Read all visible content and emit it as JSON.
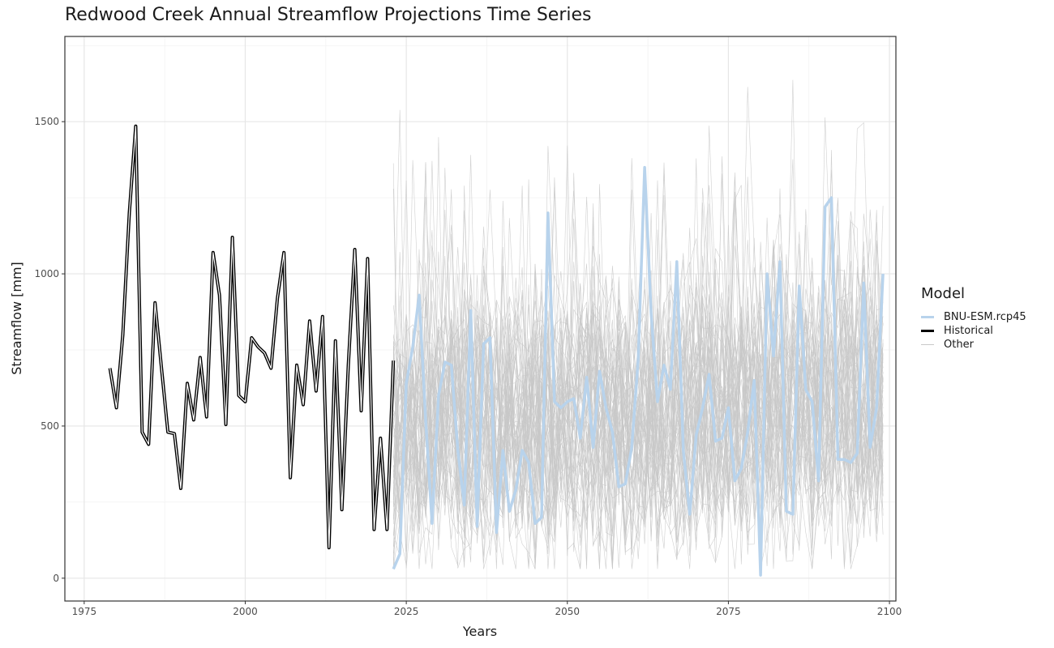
{
  "chart_data": {
    "type": "line",
    "title": "Redwood Creek Annual Streamflow Projections Time Series",
    "xlabel": "Years",
    "ylabel": "Streamflow [mm]",
    "xlim": [
      1972,
      2101
    ],
    "ylim": [
      -75,
      1780
    ],
    "xticks": [
      1975,
      2000,
      2025,
      2050,
      2075,
      2100
    ],
    "yticks": [
      0,
      500,
      1000,
      1500
    ],
    "grid": true,
    "legend": {
      "title": "Model",
      "placement": "right",
      "items": [
        {
          "label": "BNU-ESM.rcp45",
          "color": "#b8d3ec"
        },
        {
          "label": "Historical",
          "color": "#000000"
        },
        {
          "label": "Other",
          "color": "#c8c8c8"
        }
      ]
    },
    "series": [
      {
        "name": "Historical",
        "color": "#000000",
        "x": [
          1979,
          1980,
          1981,
          1982,
          1983,
          1984,
          1985,
          1986,
          1987,
          1988,
          1989,
          1990,
          1991,
          1992,
          1993,
          1994,
          1995,
          1996,
          1997,
          1998,
          1999,
          2000,
          2001,
          2002,
          2003,
          2004,
          2005,
          2006,
          2007,
          2008,
          2009,
          2010,
          2011,
          2012,
          2013,
          2014,
          2015,
          2016,
          2017,
          2018,
          2019,
          2020,
          2021,
          2022,
          2023
        ],
        "y": [
          690,
          560,
          800,
          1200,
          1485,
          480,
          440,
          905,
          690,
          480,
          475,
          295,
          640,
          520,
          725,
          530,
          1070,
          930,
          505,
          1120,
          600,
          580,
          790,
          760,
          740,
          690,
          920,
          1070,
          330,
          700,
          570,
          845,
          615,
          860,
          100,
          780,
          225,
          700,
          1080,
          550,
          1050,
          160,
          460,
          160,
          715
        ]
      },
      {
        "name": "BNU-ESM.rcp45",
        "color": "#b8d3ec",
        "x": [
          2023,
          2024,
          2025,
          2026,
          2027,
          2028,
          2029,
          2030,
          2031,
          2032,
          2033,
          2034,
          2035,
          2036,
          2037,
          2038,
          2039,
          2040,
          2041,
          2042,
          2043,
          2044,
          2045,
          2046,
          2047,
          2048,
          2049,
          2050,
          2051,
          2052,
          2053,
          2054,
          2055,
          2056,
          2057,
          2058,
          2059,
          2060,
          2061,
          2062,
          2063,
          2064,
          2065,
          2066,
          2067,
          2068,
          2069,
          2070,
          2071,
          2072,
          2073,
          2074,
          2075,
          2076,
          2077,
          2078,
          2079,
          2080,
          2081,
          2082,
          2083,
          2084,
          2085,
          2086,
          2087,
          2088,
          2089,
          2090,
          2091,
          2092,
          2093,
          2094,
          2095,
          2096,
          2097,
          2098,
          2099
        ],
        "y": [
          30,
          80,
          640,
          760,
          930,
          520,
          180,
          600,
          710,
          700,
          420,
          240,
          880,
          170,
          770,
          790,
          150,
          420,
          220,
          290,
          420,
          380,
          180,
          200,
          1200,
          580,
          560,
          580,
          590,
          460,
          660,
          430,
          680,
          560,
          480,
          300,
          310,
          430,
          720,
          1350,
          870,
          580,
          700,
          620,
          1040,
          420,
          210,
          470,
          560,
          670,
          450,
          460,
          560,
          320,
          360,
          480,
          650,
          10,
          1000,
          730,
          1040,
          220,
          210,
          960,
          620,
          580,
          320,
          1220,
          1250,
          390,
          390,
          380,
          410,
          970,
          430,
          560,
          1000
        ]
      }
    ],
    "other_ensemble": {
      "name": "Other",
      "color": "#c8c8c8",
      "x_range": [
        2023,
        2099
      ],
      "y_range": [
        30,
        1690
      ]
    }
  }
}
